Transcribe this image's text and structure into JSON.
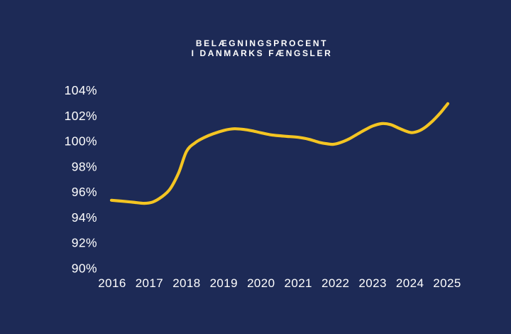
{
  "title": {
    "line1": "BELÆGNINGSPROCENT",
    "line2": "I DANMARKS FÆNGSLER"
  },
  "colors": {
    "background": "#1D2A56",
    "line": "#F4C522",
    "text": "#FFFFFF"
  },
  "chart_data": {
    "type": "line",
    "title": "Belægningsprocent i Danmarks fængsler",
    "categories": [
      "2016",
      "2017",
      "2018",
      "2019",
      "2020",
      "2021",
      "2022",
      "2023",
      "2024",
      "2025"
    ],
    "values": [
      95.3,
      95.1,
      99.2,
      100.9,
      100.7,
      100.3,
      99.8,
      101.2,
      100.7,
      103.0
    ],
    "unit": "%",
    "xlabel": "",
    "ylabel": "",
    "ylim": [
      90,
      104
    ],
    "y_ticks": [
      {
        "label": "104%",
        "value": 104
      },
      {
        "label": "102%",
        "value": 102
      },
      {
        "label": "100%",
        "value": 100
      },
      {
        "label": "98%",
        "value": 98
      },
      {
        "label": "96%",
        "value": 96
      },
      {
        "label": "94%",
        "value": 94
      },
      {
        "label": "92%",
        "value": 92
      },
      {
        "label": "90%",
        "value": 90
      }
    ],
    "grid": false,
    "legend": "none",
    "line_color": "#F4C522",
    "smoothing": "spline",
    "curve_samples": {
      "x": [
        2015.98,
        2016.25,
        2016.55,
        2016.86,
        2017.09,
        2017.33,
        2017.56,
        2017.79,
        2018.0,
        2018.23,
        2018.48,
        2018.71,
        2019.01,
        2019.28,
        2019.53,
        2019.76,
        2020.0,
        2020.23,
        2020.46,
        2020.71,
        2021.0,
        2021.28,
        2021.57,
        2021.8,
        2021.95,
        2022.14,
        2022.37,
        2022.62,
        2022.81,
        2023.0,
        2023.25,
        2023.48,
        2023.7,
        2023.9,
        2024.05,
        2024.24,
        2024.43,
        2024.62,
        2024.81,
        2024.93,
        2025.02
      ],
      "v": [
        95.35,
        95.28,
        95.2,
        95.11,
        95.21,
        95.61,
        96.25,
        97.53,
        99.2,
        99.87,
        100.29,
        100.57,
        100.85,
        100.97,
        100.92,
        100.81,
        100.65,
        100.51,
        100.43,
        100.37,
        100.3,
        100.15,
        99.9,
        99.78,
        99.75,
        99.89,
        100.18,
        100.6,
        100.91,
        101.19,
        101.38,
        101.3,
        101.02,
        100.78,
        100.67,
        100.8,
        101.13,
        101.61,
        102.19,
        102.62,
        102.95
      ]
    }
  }
}
